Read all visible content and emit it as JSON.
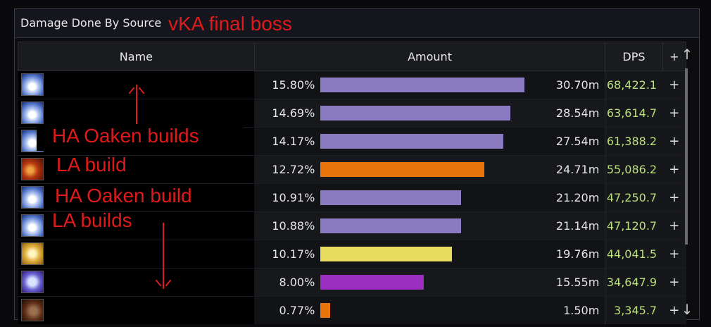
{
  "window": {
    "title": "Damage Done By Source"
  },
  "overlay_title": "vKA final boss",
  "columns": {
    "name": "Name",
    "amount": "Amount",
    "dps": "DPS",
    "plus": "+"
  },
  "rows": [
    {
      "pct": "15.80%",
      "fill": 1.0,
      "amount": "30.70m",
      "dps": "68,422.1",
      "bar_color": "#8a7bc0",
      "icon": "ice-spell-icon"
    },
    {
      "pct": "14.69%",
      "fill": 0.93,
      "amount": "28.54m",
      "dps": "63,614.7",
      "bar_color": "#8a7bc0",
      "icon": "ice-spell-icon"
    },
    {
      "pct": "14.17%",
      "fill": 0.897,
      "amount": "27.54m",
      "dps": "61,388.2",
      "bar_color": "#8a7bc0",
      "icon": "ice-spell-icon"
    },
    {
      "pct": "12.72%",
      "fill": 0.805,
      "amount": "24.71m",
      "dps": "55,086.2",
      "bar_color": "#e8760c",
      "icon": "fire-claw-icon"
    },
    {
      "pct": "10.91%",
      "fill": 0.69,
      "amount": "21.20m",
      "dps": "47,250.7",
      "bar_color": "#8a7bc0",
      "icon": "ice-spell-icon"
    },
    {
      "pct": "10.88%",
      "fill": 0.689,
      "amount": "21.14m",
      "dps": "47,120.7",
      "bar_color": "#8a7bc0",
      "icon": "ice-spell-icon"
    },
    {
      "pct": "10.17%",
      "fill": 0.644,
      "amount": "19.76m",
      "dps": "44,041.5",
      "bar_color": "#e8dc60",
      "icon": "sun-icon"
    },
    {
      "pct": "8.00%",
      "fill": 0.506,
      "amount": "15.55m",
      "dps": "34,647.9",
      "bar_color": "#9a2ec0",
      "icon": "skull-icon"
    },
    {
      "pct": "0.77%",
      "fill": 0.049,
      "amount": "1.50m",
      "dps": "3,345.7",
      "bar_color": "#e8760c",
      "icon": "beast-icon"
    }
  ],
  "annotations": {
    "ha_oaken_builds": "HA Oaken builds",
    "la_build": "LA build",
    "ha_oaken_build": "HA Oaken build",
    "la_builds": "LA builds"
  },
  "colors": {
    "annotation": "#e01a1a",
    "dps_text": "#b9e07a"
  }
}
